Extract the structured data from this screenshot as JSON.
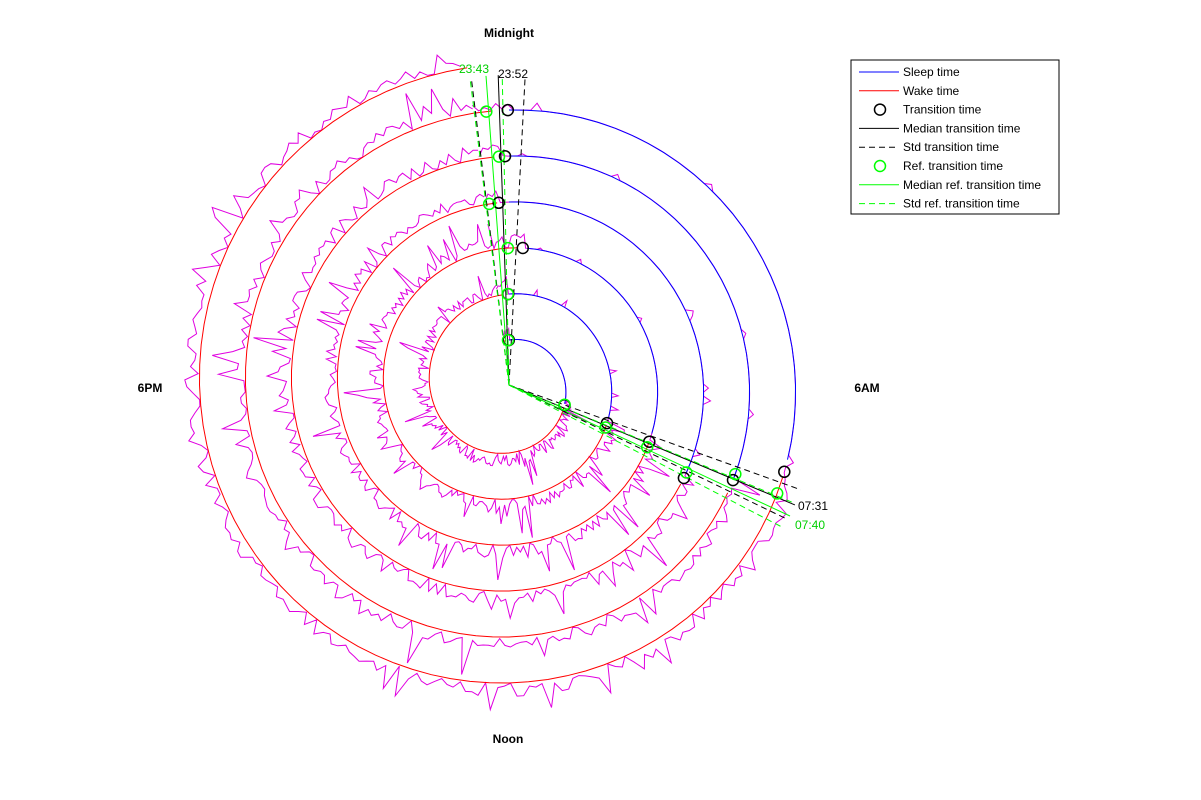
{
  "chart_data": {
    "type": "line",
    "title": "",
    "projection": "polar-spiral-24h",
    "hour_labels": {
      "top": "Midnight",
      "right": "6AM",
      "bottom": "Noon",
      "left": "6PM"
    },
    "days": [
      {
        "transition_sleep": "23:59",
        "transition_wake": "07:20",
        "ref_sleep": "23:55",
        "ref_wake": "07:18"
      },
      {
        "transition_sleep": "23:58",
        "transition_wake": "07:25",
        "ref_sleep": "23:57",
        "ref_wake": "07:35"
      },
      {
        "transition_sleep": "00:23",
        "transition_wake": "07:28",
        "ref_sleep": "23:58",
        "ref_wake": "07:37"
      },
      {
        "transition_sleep": "23:47",
        "transition_wake": "07:52",
        "ref_sleep": "23:35",
        "ref_wake": "07:45"
      },
      {
        "transition_sleep": "23:56",
        "transition_wake": "07:32",
        "ref_sleep": "23:50",
        "ref_wake": "07:26"
      },
      {
        "transition_sleep": "23:59",
        "transition_wake": "07:10",
        "ref_sleep": "23:41",
        "ref_wake": "07:28"
      }
    ],
    "median_transition": {
      "sleep": "23:52",
      "wake": "07:31"
    },
    "std_transition_minutes": {
      "sleep": 20,
      "wake": 12
    },
    "median_ref_transition": {
      "sleep": "23:43",
      "wake": "07:40"
    },
    "std_ref_transition_minutes": {
      "sleep": 12,
      "wake": 10
    },
    "annotations": {
      "median_sleep_label": "23:52",
      "median_wake_label": "07:31",
      "ref_sleep_label": "23:43",
      "ref_wake_label": "07:40"
    },
    "activity_series": {
      "name": "",
      "color": "#E000E0"
    },
    "legend": {
      "placement": "top-right",
      "entries": [
        {
          "label": "Sleep time",
          "style": "line",
          "color": "#0000FF"
        },
        {
          "label": "Wake time",
          "style": "line",
          "color": "#FF0000"
        },
        {
          "label": "Transition time",
          "style": "circle",
          "color": "#000000"
        },
        {
          "label": "Median transition time",
          "style": "line",
          "color": "#000000"
        },
        {
          "label": "Std transition time",
          "style": "dashed",
          "color": "#000000"
        },
        {
          "label": "Ref. transition time",
          "style": "circle",
          "color": "#00FF00"
        },
        {
          "label": "Median ref. transition time",
          "style": "line",
          "color": "#00FF00"
        },
        {
          "label": "Std ref. transition time",
          "style": "dashed",
          "color": "#00FF00"
        }
      ]
    }
  }
}
